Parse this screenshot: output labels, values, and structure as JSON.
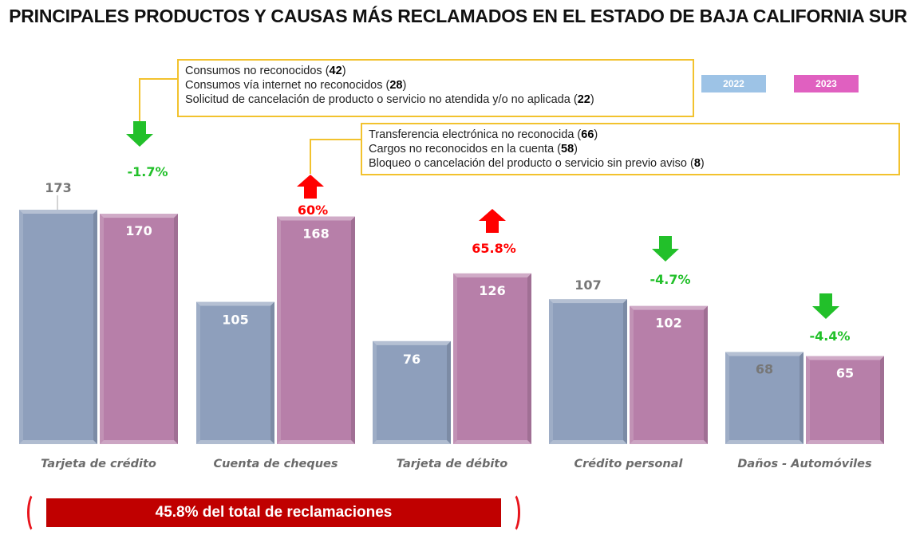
{
  "chart_data": {
    "type": "bar",
    "title": "PRINCIPALES PRODUCTOS Y CAUSAS MÁS RECLAMADOS EN EL ESTADO DE BAJA CALIFORNIA SUR",
    "xlabel": "",
    "ylabel": "",
    "ylim": [
      0,
      185
    ],
    "grid": false,
    "legend_position": "top-right",
    "categories": [
      "Tarjeta de crédito",
      "Cuenta de cheques",
      "Tarjeta de débito",
      "Crédito personal",
      "Daños - Automóviles"
    ],
    "series": [
      {
        "name": "2022",
        "color": "#8e9fbc",
        "legend_color": "#9dc3e6",
        "values": [
          173,
          105,
          76,
          107,
          68
        ]
      },
      {
        "name": "2023",
        "color": "#b77fa9",
        "legend_color": "#e060c0",
        "values": [
          170,
          168,
          126,
          102,
          65
        ]
      }
    ],
    "changes": [
      {
        "label": "-1.7%",
        "direction": "down",
        "color": "#22c02a"
      },
      {
        "label": "60%",
        "direction": "up",
        "color": "#ff0000"
      },
      {
        "label": "65.8%",
        "direction": "up",
        "color": "#ff0000"
      },
      {
        "label": "-4.7%",
        "direction": "down",
        "color": "#22c02a"
      },
      {
        "label": "-4.4%",
        "direction": "down",
        "color": "#22c02a"
      }
    ],
    "annotations": [
      {
        "category": "Tarjeta de crédito",
        "causes": [
          {
            "text": "Consumos no reconocidos",
            "count": "42"
          },
          {
            "text": "Consumos vía internet no reconocidos",
            "count": "28"
          },
          {
            "text": "Solicitud de cancelación de producto o servicio no atendida y/o no aplicada",
            "count": "22"
          }
        ]
      },
      {
        "category": "Cuenta de cheques",
        "causes": [
          {
            "text": "Transferencia electrónica no reconocida",
            "count": "66"
          },
          {
            "text": "Cargos no reconocidos en la cuenta",
            "count": "58"
          },
          {
            "text": "Bloqueo o cancelación del producto o servicio sin previo aviso",
            "count": "8"
          }
        ]
      }
    ],
    "summary": "45.8% del total de reclamaciones"
  }
}
